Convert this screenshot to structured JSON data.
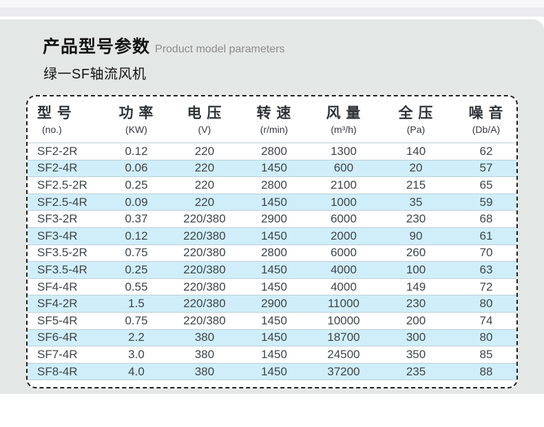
{
  "header": {
    "title_cn": "产品型号参数",
    "title_en": "Product model parameters",
    "subtitle": "绿一SF轴流风机"
  },
  "table": {
    "columns": [
      {
        "cn": "型 号",
        "sub": "(no.)"
      },
      {
        "cn": "功 率",
        "sub": "(KW)"
      },
      {
        "cn": "电 压",
        "sub": "(V)"
      },
      {
        "cn": "转 速",
        "sub": "(r/min)"
      },
      {
        "cn": "风 量",
        "sub": "(m³/h)"
      },
      {
        "cn": "全 压",
        "sub": "(Pa)"
      },
      {
        "cn": "噪 音",
        "sub": "(Db/A)"
      }
    ],
    "rows": [
      [
        "SF2-2R",
        "0.12",
        "220",
        "2800",
        "1300",
        "140",
        "62"
      ],
      [
        "SF2-4R",
        "0.06",
        "220",
        "1450",
        "600",
        "20",
        "57"
      ],
      [
        "SF2.5-2R",
        "0.25",
        "220",
        "2800",
        "2100",
        "215",
        "65"
      ],
      [
        "SF2.5-4R",
        "0.09",
        "220",
        "1450",
        "1000",
        "35",
        "59"
      ],
      [
        "SF3-2R",
        "0.37",
        "220/380",
        "2900",
        "6000",
        "230",
        "68"
      ],
      [
        "SF3-4R",
        "0.12",
        "220/380",
        "1450",
        "2000",
        "90",
        "61"
      ],
      [
        "SF3.5-2R",
        "0.75",
        "220/380",
        "2800",
        "6000",
        "260",
        "70"
      ],
      [
        "SF3.5-4R",
        "0.25",
        "220/380",
        "1450",
        "4000",
        "100",
        "63"
      ],
      [
        "SF4-4R",
        "0.55",
        "220/380",
        "1450",
        "4000",
        "149",
        "72"
      ],
      [
        "SF4-2R",
        "1.5",
        "220/380",
        "2900",
        "11000",
        "230",
        "80"
      ],
      [
        "SF5-4R",
        "0.75",
        "220/380",
        "1450",
        "10000",
        "200",
        "74"
      ],
      [
        "SF6-4R",
        "2.2",
        "380",
        "1450",
        "18700",
        "300",
        "80"
      ],
      [
        "SF7-4R",
        "3.0",
        "380",
        "1450",
        "24500",
        "350",
        "85"
      ],
      [
        "SF8-4R",
        "4.0",
        "380",
        "1450",
        "37200",
        "235",
        "88"
      ]
    ]
  },
  "colors": {
    "card_bg": "#e3e7e6",
    "row_alt_bg": "#cfeef9",
    "row_divider": "#bccfd8",
    "table_text": "#3e4448",
    "dash_border": "#1c1c1c",
    "title_en_gray": "#8c8c8c"
  }
}
